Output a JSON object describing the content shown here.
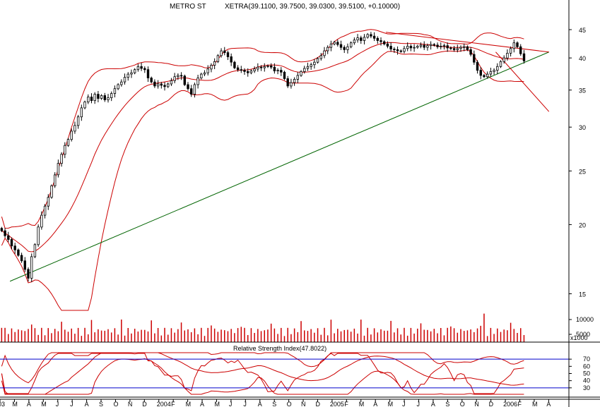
{
  "chart_data": {
    "type": "candlestick",
    "title": "METRO ST",
    "quote": "XETRA(39.1100, 39.7500, 39.0300, 39.5100, +0.10000)",
    "x_tick_labels": [
      "03",
      "M",
      "A",
      "M",
      "J",
      "J",
      "A",
      "S",
      "O",
      "N",
      "D",
      "2004",
      "F",
      "M",
      "A",
      "M",
      "J",
      "J",
      "A",
      "S",
      "O",
      "N",
      "D",
      "2005",
      "F",
      "M",
      "A",
      "M",
      "J",
      "J",
      "A",
      "S",
      "O",
      "N",
      "D",
      "2006",
      "F",
      "M",
      "A"
    ],
    "price_axis": {
      "scale": "log",
      "ylim": [
        14,
        48
      ],
      "ticks": [
        15,
        20,
        25,
        30,
        35,
        40,
        45
      ]
    },
    "volume_axis": {
      "ticks": [
        5000,
        10000
      ],
      "unit_label": "x1000"
    },
    "rsi_panel": {
      "title": "Relative Strength Index(47.8022)",
      "value": 47.8022,
      "ticks": [
        30,
        40,
        50,
        60,
        70
      ],
      "levels": [
        30,
        70
      ]
    },
    "trendlines": [
      {
        "name": "support",
        "color": "#006400",
        "from": {
          "week": 3,
          "price": 15.8
        },
        "to": {
          "week": 165,
          "price": 41.0
        }
      },
      {
        "name": "resistance",
        "color": "#cc0000",
        "from": {
          "week": 116,
          "price": 44.5
        },
        "to": {
          "week": 165,
          "price": 41.0
        }
      },
      {
        "name": "projection",
        "color": "#cc0000",
        "from": {
          "week": 149,
          "price": 41.0
        },
        "to": {
          "week": 165,
          "price": 32.0
        }
      }
    ],
    "colors": {
      "up": "#ffffff",
      "down": "#000000",
      "bands": "#cc0000",
      "volume": "#cc0000",
      "rsi_level": "#0000cc"
    },
    "weekly_close": [
      19.5,
      19.1,
      18.8,
      18.3,
      18.0,
      17.6,
      17.2,
      16.6,
      16.0,
      17.5,
      18.4,
      19.8,
      20.8,
      21.6,
      22.4,
      23.5,
      24.6,
      25.8,
      26.8,
      27.8,
      28.5,
      29.5,
      30.2,
      31.3,
      32.5,
      33.3,
      34.0,
      33.5,
      34.4,
      33.8,
      34.2,
      33.6,
      33.9,
      34.5,
      35.2,
      35.8,
      36.2,
      36.9,
      37.4,
      37.6,
      38.1,
      38.6,
      38.3,
      38.1,
      36.8,
      36.2,
      35.6,
      35.9,
      35.7,
      35.5,
      35.9,
      36.4,
      37.0,
      37.2,
      37.1,
      35.8,
      35.2,
      34.4,
      35.8,
      36.8,
      37.4,
      37.6,
      38.2,
      38.8,
      39.4,
      40.4,
      41.2,
      40.9,
      40.2,
      39.3,
      38.4,
      38.1,
      38.0,
      37.8,
      37.6,
      37.9,
      38.2,
      38.5,
      38.4,
      38.6,
      38.7,
      38.5,
      37.9,
      38.0,
      37.7,
      36.7,
      35.6,
      36.1,
      36.6,
      37.2,
      37.8,
      38.3,
      38.6,
      38.9,
      39.3,
      39.9,
      40.4,
      41.2,
      41.8,
      42.4,
      42.7,
      42.3,
      41.8,
      41.4,
      41.9,
      42.6,
      43.1,
      43.5,
      43.0,
      43.6,
      44.1,
      43.8,
      43.4,
      43.0,
      42.8,
      42.4,
      42.0,
      41.5,
      41.4,
      41.2,
      41.1,
      41.6,
      42.0,
      41.7,
      41.8,
      42.0,
      42.2,
      41.8,
      42.1,
      42.3,
      42.2,
      41.9,
      42.0,
      42.1,
      41.7,
      41.6,
      41.4,
      41.6,
      41.8,
      41.9,
      41.4,
      40.6,
      39.3,
      38.0,
      37.2,
      37.0,
      37.4,
      37.8,
      38.0,
      38.6,
      39.4,
      40.0,
      40.8,
      41.6,
      42.6,
      41.9,
      40.7,
      39.5
    ]
  }
}
